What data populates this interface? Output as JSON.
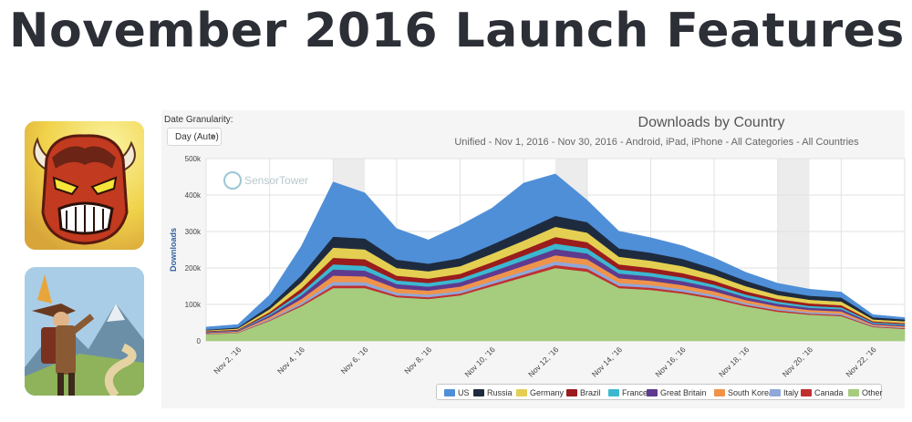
{
  "page": {
    "title": "November 2016 Launch Features"
  },
  "apps": [
    {
      "name": "red-horned-creature-app-icon"
    },
    {
      "name": "hiker-mountains-app-icon"
    }
  ],
  "controls": {
    "granularity_label": "Date Granularity:",
    "granularity_value": "Day (Auto)"
  },
  "watermark": "SensorTower",
  "chart_data": {
    "type": "area",
    "stacked": true,
    "title": "Downloads by Country",
    "subtitle": "Unified - Nov 1, 2016 - Nov 30, 2016 - Android, iPad, iPhone - All Categories - All Countries",
    "ylabel": "Downloads",
    "ylim": [
      0,
      500000
    ],
    "y_ticks": [
      "0",
      "100k",
      "200k",
      "300k",
      "400k",
      "500k"
    ],
    "x": [
      "2016-11-01",
      "2016-11-02",
      "2016-11-03",
      "2016-11-04",
      "2016-11-05",
      "2016-11-06",
      "2016-11-07",
      "2016-11-08",
      "2016-11-09",
      "2016-11-10",
      "2016-11-11",
      "2016-11-12",
      "2016-11-13",
      "2016-11-14",
      "2016-11-15",
      "2016-11-16",
      "2016-11-17",
      "2016-11-18",
      "2016-11-19",
      "2016-11-20",
      "2016-11-21",
      "2016-11-22",
      "2016-11-23"
    ],
    "x_tick_labels": [
      "Nov 2, '16",
      "Nov 4, '16",
      "Nov 6, '16",
      "Nov 8, '16",
      "Nov 10, '16",
      "Nov 12, '16",
      "Nov 14, '16",
      "Nov 16, '16",
      "Nov 18, '16",
      "Nov 20, '16",
      "Nov 22, '16"
    ],
    "weekend_bands": [
      [
        "2016-11-05",
        "2016-11-06"
      ],
      [
        "2016-11-12",
        "2016-11-13"
      ],
      [
        "2016-11-19",
        "2016-11-20"
      ]
    ],
    "series": [
      {
        "name": "Other",
        "color": "#a6cc7e",
        "values": [
          18000,
          22000,
          55000,
          95000,
          145000,
          145000,
          120000,
          115000,
          125000,
          150000,
          175000,
          200000,
          190000,
          145000,
          140000,
          130000,
          115000,
          95000,
          80000,
          72000,
          68000,
          38000,
          33000
        ]
      },
      {
        "name": "Canada",
        "color": "#c03030",
        "values": [
          1000,
          1000,
          2000,
          4000,
          7000,
          7000,
          5000,
          5000,
          5000,
          6000,
          7000,
          8000,
          8000,
          6000,
          6000,
          5000,
          5000,
          4000,
          4000,
          3000,
          3000,
          2000,
          2000
        ]
      },
      {
        "name": "Italy",
        "color": "#90a8d8",
        "values": [
          1000,
          1000,
          3000,
          6000,
          10000,
          9000,
          7000,
          7000,
          7000,
          8000,
          9000,
          10000,
          10000,
          8000,
          7000,
          7000,
          6000,
          5000,
          4000,
          4000,
          4000,
          2000,
          2000
        ]
      },
      {
        "name": "South Korea",
        "color": "#f0934a",
        "values": [
          2000,
          2000,
          5000,
          10000,
          17000,
          16000,
          12000,
          11000,
          12000,
          13000,
          15000,
          17000,
          16000,
          13000,
          12000,
          11000,
          10000,
          8000,
          7000,
          6000,
          6000,
          3000,
          3000
        ]
      },
      {
        "name": "Great Britain",
        "color": "#5e3b8e",
        "values": [
          2000,
          2000,
          5000,
          10000,
          17000,
          16000,
          12000,
          11000,
          12000,
          13000,
          15000,
          17000,
          16000,
          13000,
          12000,
          11000,
          10000,
          8000,
          7000,
          6000,
          6000,
          3000,
          3000
        ]
      },
      {
        "name": "France",
        "color": "#3bb8d0",
        "values": [
          1000,
          1000,
          4000,
          8000,
          14000,
          13000,
          10000,
          10000,
          10000,
          12000,
          13000,
          15000,
          14000,
          11000,
          10000,
          10000,
          8000,
          7000,
          6000,
          5000,
          5000,
          3000,
          3000
        ]
      },
      {
        "name": "Brazil",
        "color": "#9a1c1c",
        "values": [
          2000,
          2000,
          5000,
          11000,
          18000,
          18000,
          13000,
          12000,
          13000,
          14000,
          16000,
          18000,
          17000,
          14000,
          13000,
          12000,
          11000,
          9000,
          7000,
          7000,
          6000,
          3000,
          3000
        ]
      },
      {
        "name": "Germany",
        "color": "#e4cf52",
        "values": [
          2000,
          3000,
          8000,
          17000,
          28000,
          27000,
          21000,
          20000,
          21000,
          23000,
          25000,
          28000,
          26000,
          21000,
          20000,
          19000,
          16000,
          14000,
          11000,
          10000,
          10000,
          5000,
          5000
        ]
      },
      {
        "name": "Russia",
        "color": "#1e2b3f",
        "values": [
          2000,
          3000,
          9000,
          19000,
          30000,
          30000,
          23000,
          21000,
          22000,
          25000,
          28000,
          30000,
          29000,
          23000,
          22000,
          20000,
          17000,
          15000,
          12000,
          11000,
          11000,
          6000,
          5000
        ]
      },
      {
        "name": "US",
        "color": "#4f8fd8",
        "values": [
          7000,
          8000,
          30000,
          80000,
          150000,
          125000,
          85000,
          65000,
          90000,
          100000,
          130000,
          115000,
          60000,
          47000,
          41000,
          36000,
          30000,
          23000,
          20000,
          18000,
          15000,
          7000,
          5000
        ]
      }
    ],
    "legend": [
      "US",
      "Russia",
      "Germany",
      "Brazil",
      "France",
      "Great Britain",
      "South Korea",
      "Italy",
      "Canada",
      "Other"
    ],
    "legend_position": "bottom",
    "grid": true
  }
}
